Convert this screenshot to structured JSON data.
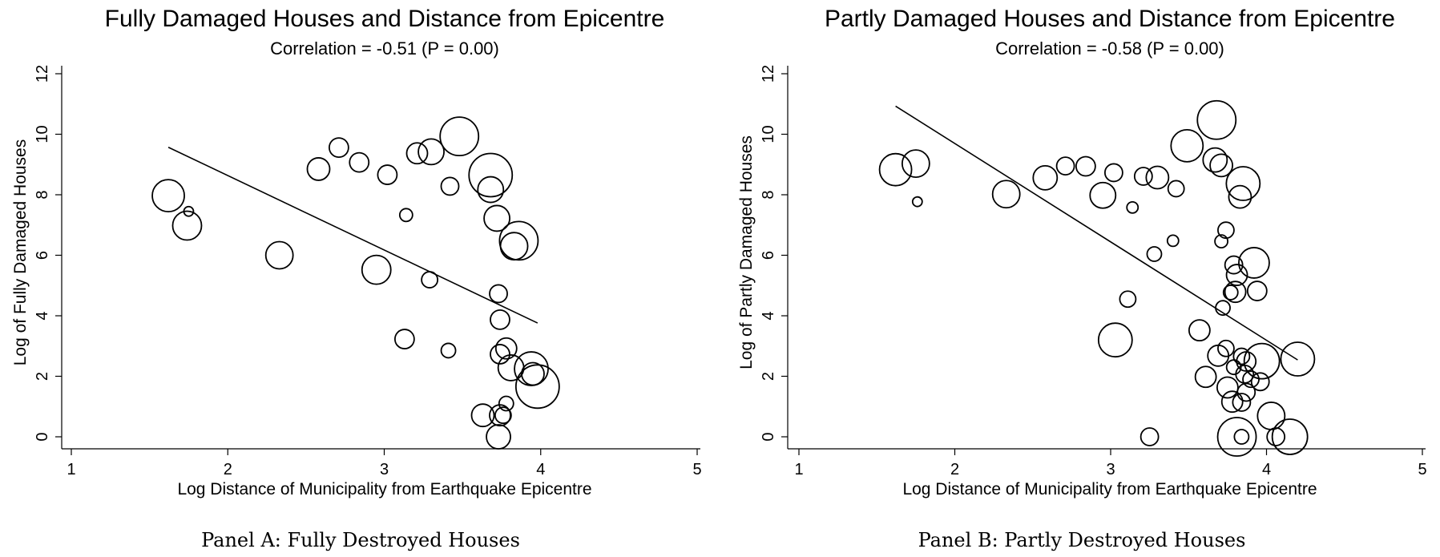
{
  "chart_data": [
    {
      "type": "scatter",
      "title": "Fully Damaged Houses and Distance from Epicentre",
      "subtitle": "Correlation = -0.51 (P = 0.00)",
      "xlabel": "Log Distance of Municipality from Earthquake Epicentre",
      "ylabel": "Log of Fully Damaged Houses",
      "xlim": [
        1,
        5
      ],
      "ylim": [
        0,
        12
      ],
      "xticks": [
        "1",
        "2",
        "3",
        "4",
        "5"
      ],
      "yticks": [
        "0",
        "2",
        "4",
        "6",
        "8",
        "10",
        "12"
      ],
      "caption": "Panel A: Fully Destroyed Houses",
      "fit_line": {
        "x": [
          1.62,
          3.98
        ],
        "y": [
          9.57,
          3.76
        ]
      },
      "points": [
        {
          "x": 1.62,
          "y": 7.97,
          "size": 20
        },
        {
          "x": 1.75,
          "y": 7.45,
          "size": 6
        },
        {
          "x": 1.74,
          "y": 6.98,
          "size": 18
        },
        {
          "x": 2.33,
          "y": 6.0,
          "size": 17
        },
        {
          "x": 2.58,
          "y": 8.85,
          "size": 14
        },
        {
          "x": 2.71,
          "y": 9.56,
          "size": 12
        },
        {
          "x": 2.84,
          "y": 9.07,
          "size": 12
        },
        {
          "x": 2.95,
          "y": 5.52,
          "size": 18
        },
        {
          "x": 3.02,
          "y": 8.66,
          "size": 12
        },
        {
          "x": 3.13,
          "y": 3.23,
          "size": 12
        },
        {
          "x": 3.14,
          "y": 7.33,
          "size": 8
        },
        {
          "x": 3.21,
          "y": 9.37,
          "size": 13
        },
        {
          "x": 3.3,
          "y": 9.42,
          "size": 16
        },
        {
          "x": 3.29,
          "y": 5.19,
          "size": 10
        },
        {
          "x": 3.41,
          "y": 2.85,
          "size": 9
        },
        {
          "x": 3.42,
          "y": 8.28,
          "size": 11
        },
        {
          "x": 3.48,
          "y": 9.93,
          "size": 24
        },
        {
          "x": 3.63,
          "y": 0.71,
          "size": 14
        },
        {
          "x": 3.68,
          "y": 8.65,
          "size": 27
        },
        {
          "x": 3.68,
          "y": 8.17,
          "size": 16
        },
        {
          "x": 3.72,
          "y": 7.22,
          "size": 16
        },
        {
          "x": 3.73,
          "y": 4.73,
          "size": 11
        },
        {
          "x": 3.74,
          "y": 3.87,
          "size": 12
        },
        {
          "x": 3.74,
          "y": 2.73,
          "size": 12
        },
        {
          "x": 3.74,
          "y": 0.71,
          "size": 13
        },
        {
          "x": 3.73,
          "y": 0.0,
          "size": 15
        },
        {
          "x": 3.76,
          "y": 0.71,
          "size": 10
        },
        {
          "x": 3.78,
          "y": 1.1,
          "size": 9
        },
        {
          "x": 3.78,
          "y": 2.92,
          "size": 13
        },
        {
          "x": 3.81,
          "y": 2.28,
          "size": 16
        },
        {
          "x": 3.83,
          "y": 6.3,
          "size": 17
        },
        {
          "x": 3.86,
          "y": 6.48,
          "size": 24
        },
        {
          "x": 3.94,
          "y": 2.25,
          "size": 21
        },
        {
          "x": 3.95,
          "y": 2.08,
          "size": 14
        },
        {
          "x": 3.98,
          "y": 1.66,
          "size": 27
        }
      ]
    },
    {
      "type": "scatter",
      "title": "Partly Damaged Houses and Distance from Epicentre",
      "subtitle": "Correlation = -0.58 (P = 0.00)",
      "xlabel": "Log Distance of Municipality from Earthquake Epicentre",
      "ylabel": "Log of Partly Damaged Houses",
      "xlim": [
        1,
        5
      ],
      "ylim": [
        0,
        12
      ],
      "xticks": [
        "1",
        "2",
        "3",
        "4",
        "5"
      ],
      "yticks": [
        "0",
        "2",
        "4",
        "6",
        "8",
        "10",
        "12"
      ],
      "caption": "Panel B: Partly Destroyed Houses",
      "fit_line": {
        "x": [
          1.62,
          4.2
        ],
        "y": [
          10.93,
          2.54
        ]
      },
      "points": [
        {
          "x": 1.62,
          "y": 8.83,
          "size": 20
        },
        {
          "x": 1.75,
          "y": 9.03,
          "size": 17
        },
        {
          "x": 1.76,
          "y": 7.77,
          "size": 6
        },
        {
          "x": 2.33,
          "y": 8.02,
          "size": 17
        },
        {
          "x": 2.58,
          "y": 8.56,
          "size": 15
        },
        {
          "x": 2.71,
          "y": 8.95,
          "size": 11
        },
        {
          "x": 2.84,
          "y": 8.94,
          "size": 12
        },
        {
          "x": 2.95,
          "y": 7.98,
          "size": 16
        },
        {
          "x": 3.02,
          "y": 8.73,
          "size": 11
        },
        {
          "x": 3.03,
          "y": 3.2,
          "size": 21
        },
        {
          "x": 3.11,
          "y": 4.55,
          "size": 10
        },
        {
          "x": 3.14,
          "y": 7.58,
          "size": 7
        },
        {
          "x": 3.21,
          "y": 8.61,
          "size": 11
        },
        {
          "x": 3.25,
          "y": 0.0,
          "size": 11
        },
        {
          "x": 3.28,
          "y": 6.04,
          "size": 9
        },
        {
          "x": 3.3,
          "y": 8.57,
          "size": 14
        },
        {
          "x": 3.4,
          "y": 6.48,
          "size": 7
        },
        {
          "x": 3.42,
          "y": 8.2,
          "size": 10
        },
        {
          "x": 3.49,
          "y": 9.62,
          "size": 20
        },
        {
          "x": 3.57,
          "y": 3.52,
          "size": 13
        },
        {
          "x": 3.61,
          "y": 1.98,
          "size": 13
        },
        {
          "x": 3.67,
          "y": 9.15,
          "size": 15
        },
        {
          "x": 3.68,
          "y": 10.47,
          "size": 24
        },
        {
          "x": 3.69,
          "y": 2.68,
          "size": 13
        },
        {
          "x": 3.71,
          "y": 8.97,
          "size": 14
        },
        {
          "x": 3.71,
          "y": 6.46,
          "size": 8
        },
        {
          "x": 3.72,
          "y": 4.26,
          "size": 9
        },
        {
          "x": 3.74,
          "y": 6.83,
          "size": 10
        },
        {
          "x": 3.74,
          "y": 2.92,
          "size": 10
        },
        {
          "x": 3.75,
          "y": 1.63,
          "size": 13
        },
        {
          "x": 3.77,
          "y": 4.77,
          "size": 9
        },
        {
          "x": 3.78,
          "y": 1.16,
          "size": 13
        },
        {
          "x": 3.79,
          "y": 5.68,
          "size": 11
        },
        {
          "x": 3.79,
          "y": 2.3,
          "size": 9
        },
        {
          "x": 3.81,
          "y": 5.35,
          "size": 13
        },
        {
          "x": 3.8,
          "y": 4.79,
          "size": 13
        },
        {
          "x": 3.81,
          "y": 0.0,
          "size": 24
        },
        {
          "x": 3.83,
          "y": 7.93,
          "size": 14
        },
        {
          "x": 3.85,
          "y": 8.37,
          "size": 21
        },
        {
          "x": 3.84,
          "y": 2.66,
          "size": 10
        },
        {
          "x": 3.84,
          "y": 1.14,
          "size": 11
        },
        {
          "x": 3.84,
          "y": 0.0,
          "size": 9
        },
        {
          "x": 3.86,
          "y": 2.07,
          "size": 11
        },
        {
          "x": 3.87,
          "y": 1.47,
          "size": 11
        },
        {
          "x": 3.87,
          "y": 2.49,
          "size": 12
        },
        {
          "x": 3.9,
          "y": 1.9,
          "size": 10
        },
        {
          "x": 3.92,
          "y": 5.75,
          "size": 19
        },
        {
          "x": 3.94,
          "y": 4.82,
          "size": 12
        },
        {
          "x": 3.96,
          "y": 1.82,
          "size": 11
        },
        {
          "x": 3.97,
          "y": 2.5,
          "size": 22
        },
        {
          "x": 4.03,
          "y": 0.69,
          "size": 17
        },
        {
          "x": 4.06,
          "y": 0.0,
          "size": 11
        },
        {
          "x": 4.15,
          "y": 0.0,
          "size": 22
        },
        {
          "x": 4.2,
          "y": 2.57,
          "size": 21
        }
      ]
    }
  ]
}
